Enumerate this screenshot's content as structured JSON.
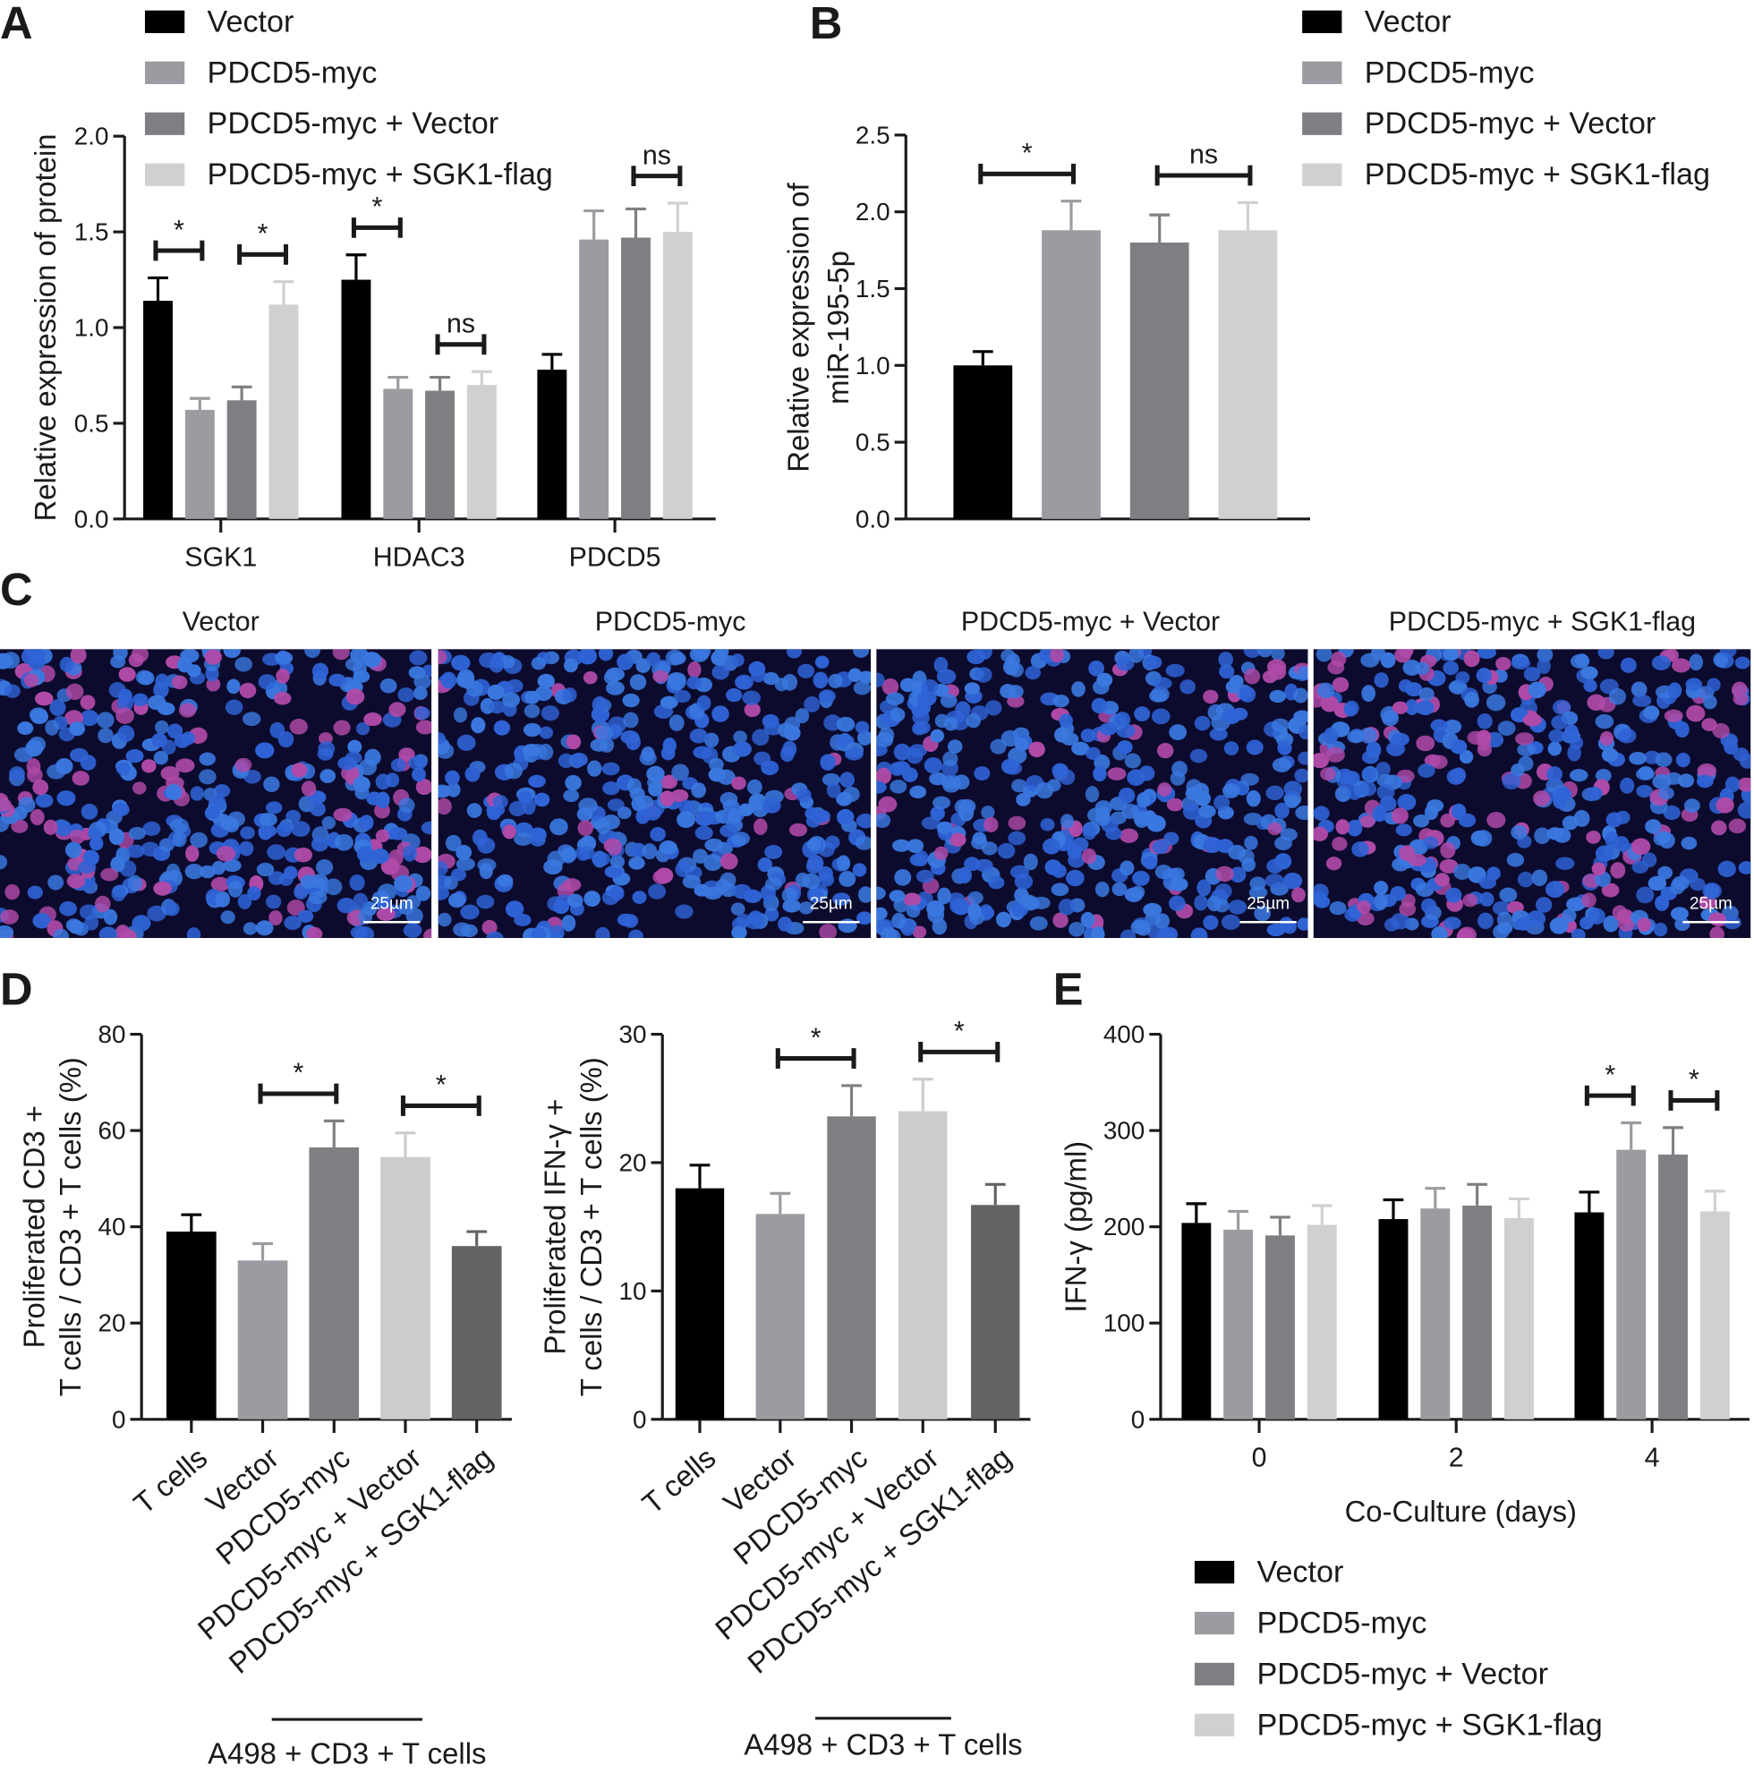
{
  "chart_data": [
    {
      "type": "bar",
      "panel": "A",
      "ylabel": "Relative  expression of protein",
      "categories": [
        "SGK1",
        "HDAC3",
        "PDCD5"
      ],
      "series": [
        {
          "name": "Vector",
          "color": "#000000",
          "values": [
            1.14,
            1.25,
            0.78
          ],
          "errors": [
            0.12,
            0.13,
            0.08
          ]
        },
        {
          "name": "PDCD5-myc",
          "color": "#9a9ca1",
          "values": [
            0.57,
            0.68,
            1.46
          ],
          "errors": [
            0.06,
            0.06,
            0.15
          ]
        },
        {
          "name": "PDCD5-myc + Vector",
          "color": "#7f7f83",
          "values": [
            0.62,
            0.67,
            1.47
          ],
          "errors": [
            0.07,
            0.07,
            0.15
          ]
        },
        {
          "name": "PDCD5-myc + SGK1-flag",
          "color": "#cfd0d2",
          "values": [
            1.12,
            0.7,
            1.5
          ],
          "errors": [
            0.12,
            0.07,
            0.15
          ]
        }
      ],
      "ylim": [
        0,
        2
      ],
      "yticks": [
        {
          "value": 0,
          "label": "0.0"
        },
        0.5,
        {
          "value": 1,
          "label": "1.0"
        },
        1.5,
        {
          "value": 2,
          "label": "2.0"
        }
      ],
      "significance": [
        {
          "text": "*",
          "category": 0,
          "series": [
            0,
            1
          ]
        },
        {
          "text": "*",
          "category": 0,
          "series": [
            2,
            3
          ]
        },
        {
          "text": "*",
          "category": 1,
          "series": [
            0,
            1
          ]
        },
        {
          "text": "ns",
          "category": 1,
          "series": [
            2,
            3
          ]
        },
        {
          "text": "ns",
          "category": 2,
          "series": [
            2,
            3
          ]
        }
      ]
    },
    {
      "type": "bar",
      "panel": "B",
      "ylabel": [
        "Relative expression of",
        "miR-195-5p"
      ],
      "categories": [
        null
      ],
      "series": [
        {
          "name": "Vector",
          "color": "#000000",
          "values": [
            1.0
          ],
          "errors": [
            0.09
          ]
        },
        {
          "name": "PDCD5-myc",
          "color": "#9a9ca1",
          "values": [
            1.88
          ],
          "errors": [
            0.19
          ]
        },
        {
          "name": "PDCD5-myc + Vector",
          "color": "#7f7f83",
          "values": [
            1.8
          ],
          "errors": [
            0.18
          ]
        },
        {
          "name": "PDCD5-myc + SGK1-flag",
          "color": "#cfd0d2",
          "values": [
            1.88
          ],
          "errors": [
            0.18
          ]
        }
      ],
      "ylim": [
        0,
        2.5
      ],
      "yticks": [
        {
          "value": 0,
          "label": "0.0"
        },
        0.5,
        {
          "value": 1,
          "label": "1.0"
        },
        1.5,
        {
          "value": 2,
          "label": "2.0"
        },
        2.5
      ],
      "significance": [
        {
          "text": "*",
          "category": 0,
          "series": [
            0,
            1
          ]
        },
        {
          "text": "ns",
          "category": 0,
          "series": [
            2,
            3
          ]
        }
      ]
    },
    {
      "type": "bar",
      "panel": "D",
      "ylabel": [
        "Proliferated CD3 +",
        "T cells / CD3 + T cells (%)"
      ],
      "categories": [
        "T cells",
        "Vector",
        "PDCD5-myc",
        "PDCD5-myc + Vector",
        "PDCD5-myc + SGK1-flag"
      ],
      "values": [
        39,
        33,
        56.5,
        54.5,
        36
      ],
      "errors": [
        3.5,
        3.5,
        5.5,
        5,
        3
      ],
      "colors": [
        "#000000",
        "#9a9ca1",
        "#808084",
        "#cbccce",
        "#626365"
      ],
      "ylim": [
        0,
        80
      ],
      "yticks": [
        0,
        20,
        40,
        60,
        80
      ],
      "group_label": "A498 + CD3 + T cells",
      "significance": [
        {
          "text": "*",
          "bars": [
            1,
            2
          ]
        },
        {
          "text": "*",
          "bars": [
            3,
            4
          ]
        }
      ]
    },
    {
      "type": "bar",
      "ylabel": [
        "Proliferated IFN-γ +",
        "T cells / CD3 + T cells (%)"
      ],
      "categories": [
        "T cells",
        "Vector",
        "PDCD5-myc",
        "PDCD5-myc + Vector",
        "PDCD5-myc + SGK1-flag"
      ],
      "values": [
        18,
        16,
        23.6,
        24,
        16.7
      ],
      "errors": [
        1.8,
        1.6,
        2.4,
        2.5,
        1.6
      ],
      "colors": [
        "#000000",
        "#9a9ca1",
        "#808084",
        "#cbccce",
        "#626365"
      ],
      "ylim": [
        0,
        30
      ],
      "yticks": [
        0,
        10,
        20,
        30
      ],
      "group_label": "A498 + CD3 + T cells",
      "significance": [
        {
          "text": "*",
          "bars": [
            1,
            2
          ]
        },
        {
          "text": "*",
          "bars": [
            3,
            4
          ]
        }
      ]
    },
    {
      "type": "bar",
      "panel": "E",
      "ylabel": "IFN-γ (pg/ml)",
      "xlabel": "Co-Culture (days)",
      "categories": [
        "0",
        "2",
        "4"
      ],
      "series": [
        {
          "name": "Vector",
          "color": "#000000",
          "values": [
            204,
            208,
            215
          ],
          "errors": [
            20,
            20,
            21
          ]
        },
        {
          "name": "PDCD5-myc",
          "color": "#9a9ca1",
          "values": [
            197,
            219,
            280
          ],
          "errors": [
            19,
            21,
            28
          ]
        },
        {
          "name": "PDCD5-myc + Vector",
          "color": "#7f7f83",
          "values": [
            191,
            222,
            275
          ],
          "errors": [
            19,
            22,
            28
          ]
        },
        {
          "name": "PDCD5-myc + SGK1-flag",
          "color": "#cfd0d2",
          "values": [
            202,
            209,
            216
          ],
          "errors": [
            20,
            20,
            21
          ]
        }
      ],
      "ylim": [
        0,
        400
      ],
      "yticks": [
        0,
        100,
        200,
        300,
        400
      ],
      "significance": [
        {
          "text": "*",
          "category": 2,
          "series": [
            0,
            1
          ]
        },
        {
          "text": "*",
          "category": 2,
          "series": [
            2,
            3
          ]
        }
      ]
    }
  ],
  "panel_c": {
    "panel": "C",
    "images": [
      {
        "title": "Vector",
        "scale_bar": "25µm"
      },
      {
        "title": "PDCD5-myc",
        "scale_bar": "25µm"
      },
      {
        "title": "PDCD5-myc + Vector",
        "scale_bar": "25µm"
      },
      {
        "title": "PDCD5-myc + SGK1-flag",
        "scale_bar": "25µm"
      }
    ]
  }
}
